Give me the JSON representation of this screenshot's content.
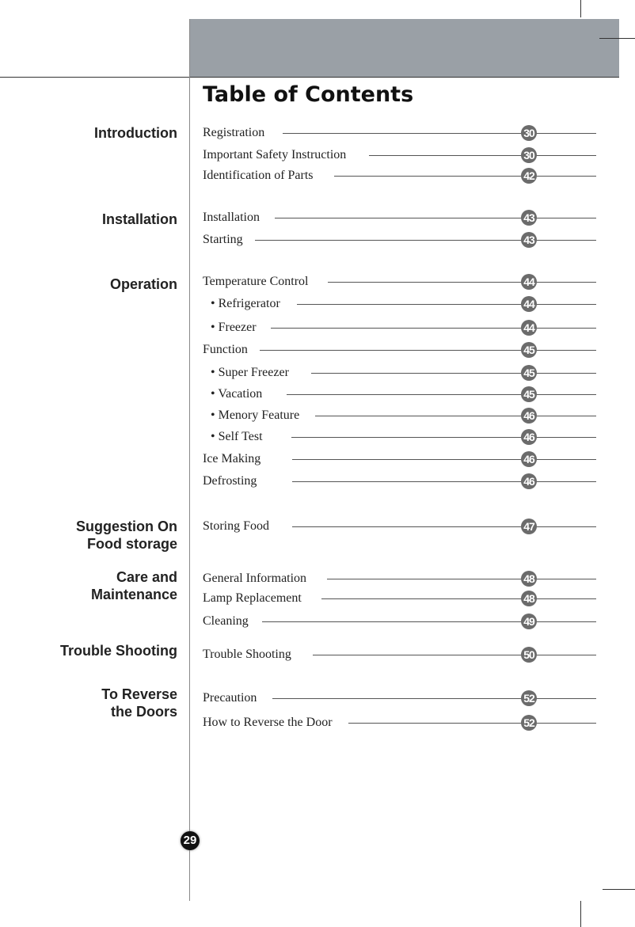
{
  "title": "Table of Contents",
  "page_number": "29",
  "sections": [
    {
      "lines": [
        "Introduction"
      ]
    },
    {
      "lines": [
        "Installation"
      ]
    },
    {
      "lines": [
        "Operation"
      ]
    },
    {
      "lines": [
        "Suggestion On",
        "Food storage"
      ]
    },
    {
      "lines": [
        "Care and",
        "Maintenance"
      ]
    },
    {
      "lines": [
        "Trouble Shooting"
      ]
    },
    {
      "lines": [
        "To Reverse",
        "the Doors"
      ]
    }
  ],
  "entries": [
    {
      "label": "Registration",
      "page": "30"
    },
    {
      "label": "Important Safety Instruction",
      "page": "30"
    },
    {
      "label": "Identification of Parts",
      "page": "42"
    },
    {
      "label": "Installation",
      "page": "43"
    },
    {
      "label": "Starting",
      "page": "43"
    },
    {
      "label": "Temperature Control",
      "page": "44"
    },
    {
      "label": "• Refrigerator",
      "page": "44"
    },
    {
      "label": "• Freezer",
      "page": "44"
    },
    {
      "label": "Function",
      "page": "45"
    },
    {
      "label": "• Super Freezer",
      "page": "45"
    },
    {
      "label": "• Vacation",
      "page": "45"
    },
    {
      "label": "• Menory Feature",
      "page": "46"
    },
    {
      "label": "• Self Test",
      "page": "46"
    },
    {
      "label": "Ice Making",
      "page": "46"
    },
    {
      "label": "Defrosting",
      "page": "46"
    },
    {
      "label": "Storing Food",
      "page": "47"
    },
    {
      "label": "General Information",
      "page": "48"
    },
    {
      "label": "Lamp Replacement",
      "page": "48"
    },
    {
      "label": "Cleaning",
      "page": "49"
    },
    {
      "label": "Trouble Shooting",
      "page": "50"
    },
    {
      "label": "Precaution",
      "page": "52"
    },
    {
      "label": "How to Reverse the Door",
      "page": "52"
    }
  ]
}
